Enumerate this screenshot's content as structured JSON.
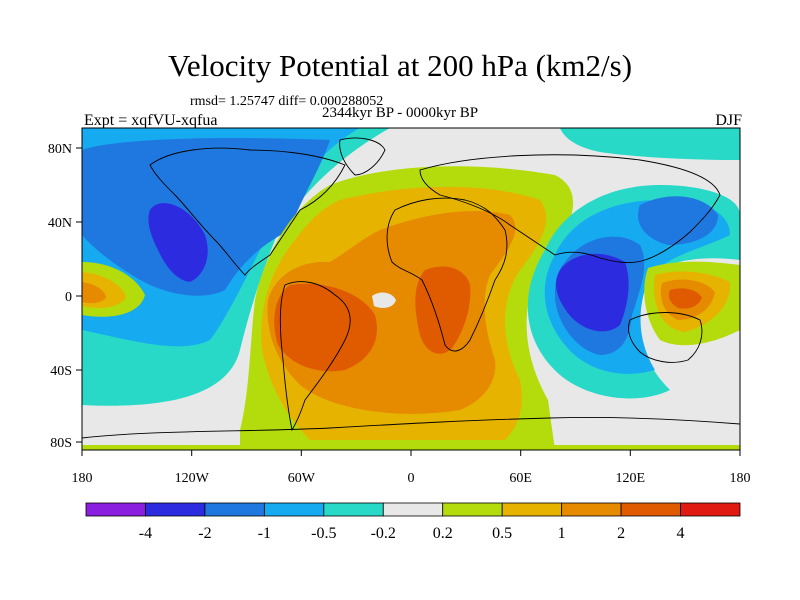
{
  "title": "Velocity Potential at 200 hPa (km2/s)",
  "stats": "rmsd= 1.25747 diff= 0.000288052",
  "expt_label": "Expt = xqfVU-xqfua",
  "period_label": "2344kyr BP - 0000kyr BP",
  "season_label": "DJF",
  "map": {
    "lon_ticks": [
      "180",
      "120W",
      "60W",
      "0",
      "60E",
      "120E",
      "180"
    ],
    "lat_ticks": [
      "80N",
      "40N",
      "0",
      "40S",
      "80S"
    ]
  },
  "colorbar": {
    "colors": [
      "#8a1fe0",
      "#2d2be0",
      "#1f78e0",
      "#16aaf0",
      "#29d9c8",
      "#e8e8e8",
      "#b4dc0c",
      "#e6b400",
      "#e68a00",
      "#e05a00",
      "#e01a10"
    ],
    "labels": [
      "-4",
      "-2",
      "-1",
      "-0.5",
      "-0.2",
      "0.2",
      "0.5",
      "1",
      "2",
      "4"
    ]
  }
}
